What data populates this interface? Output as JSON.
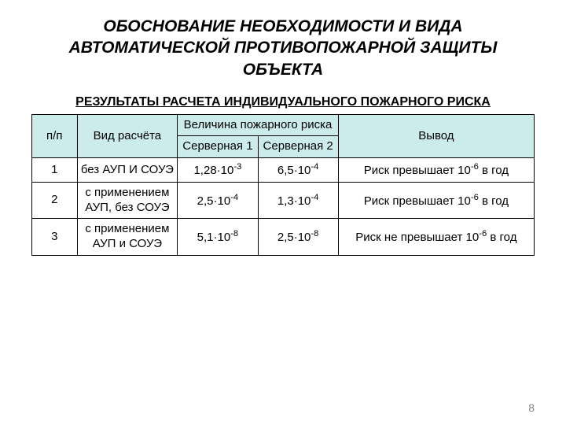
{
  "title": "ОБОСНОВАНИЕ НЕОБХОДИМОСТИ И ВИДА АВТОМАТИЧЕСКОЙ ПРОТИВОПОЖАРНОЙ ЗАЩИТЫ ОБЪЕКТА",
  "subtitle": "РЕЗУЛЬТАТЫ РАСЧЕТА ИНДИВИДУАЛЬНОГО ПОЖАРНОГО РИСКА",
  "pageNumber": "8",
  "table": {
    "type": "table",
    "header_bg": "#ccecec",
    "border_color": "#000000",
    "fontsize": 15,
    "columns": {
      "num": "п/п",
      "type": "Вид расчёта",
      "riskGroup": "Величина пожарного риска",
      "server1": "Серверная 1",
      "server2": "Серверная 2",
      "out": "Вывод"
    },
    "rows": [
      {
        "num": "1",
        "type": "без АУП И СОУЭ",
        "s1_base": "1,28·10",
        "s1_exp": "-3",
        "s2_base": "6,5·10",
        "s2_exp": "-4",
        "out_prefix": "Риск превышает 10",
        "out_exp": "-6",
        "out_suffix": " в год"
      },
      {
        "num": "2",
        "type": "с применением АУП, без СОУЭ",
        "s1_base": "2,5·10",
        "s1_exp": "-4",
        "s2_base": "1,3·10",
        "s2_exp": "-4",
        "out_prefix": "Риск превышает 10",
        "out_exp": "-6",
        "out_suffix": " в год"
      },
      {
        "num": "3",
        "type": "с применением АУП и СОУЭ",
        "s1_base": "5,1·10",
        "s1_exp": "-8",
        "s2_base": "2,5·10",
        "s2_exp": "-8",
        "out_prefix": "Риск не превышает 10",
        "out_exp": "-6",
        "out_suffix": " в год"
      }
    ]
  }
}
